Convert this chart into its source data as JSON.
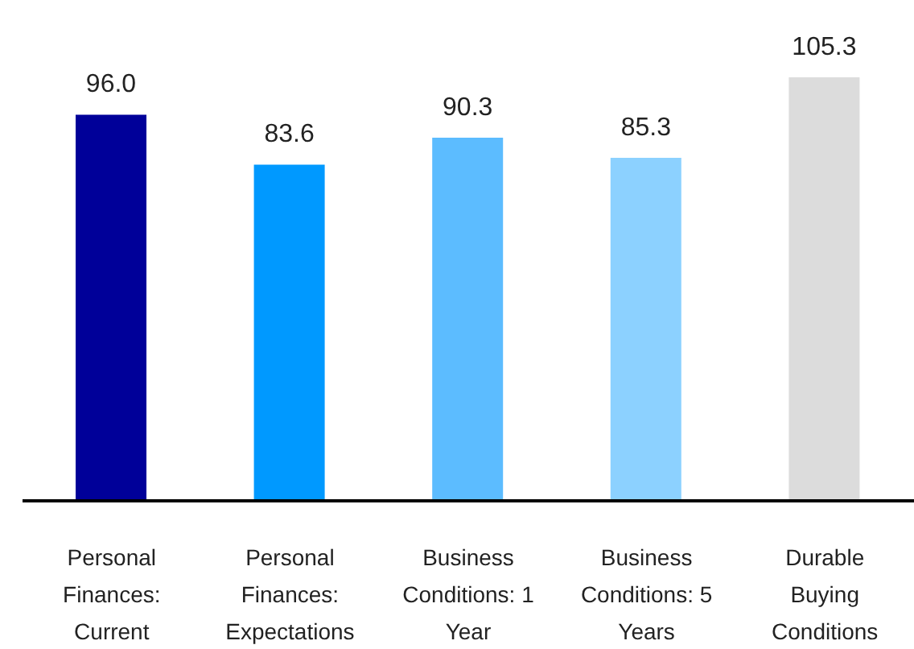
{
  "chart_data": {
    "type": "bar",
    "categories": [
      "Personal Finances: Current",
      "Personal Finances: Expectations",
      "Business Conditions: 1 Year",
      "Business Conditions: 5 Years",
      "Durable Buying Conditions"
    ],
    "values": [
      96.0,
      83.6,
      90.3,
      85.3,
      105.3
    ],
    "colors": [
      "#000099",
      "#0099ff",
      "#5cbcff",
      "#8cd1ff",
      "#dcdcdc"
    ],
    "value_labels": [
      "96.0",
      "83.6",
      "90.3",
      "85.3",
      "105.3"
    ]
  }
}
